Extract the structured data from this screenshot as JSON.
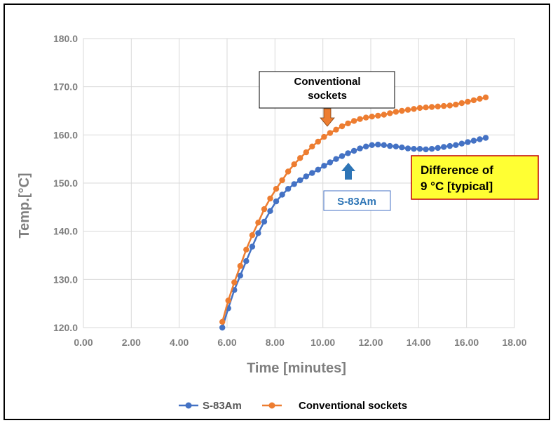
{
  "chart_data": {
    "type": "line",
    "xlabel": "Time [minutes]",
    "ylabel": "Temp.[°C]",
    "xlim": [
      0,
      18
    ],
    "ylim": [
      120,
      180
    ],
    "x_ticks": [
      "0.00",
      "2.00",
      "4.00",
      "6.00",
      "8.00",
      "10.00",
      "12.00",
      "14.00",
      "16.00",
      "18.00"
    ],
    "y_ticks": [
      "120.0",
      "130.0",
      "140.0",
      "150.0",
      "160.0",
      "170.0",
      "180.0"
    ],
    "grid": true,
    "legend_position": "bottom",
    "series": [
      {
        "name": "S-83Am",
        "color": "#4472c4",
        "points": [
          [
            5.8,
            120.0
          ],
          [
            6.05,
            124.0
          ],
          [
            6.3,
            127.8
          ],
          [
            6.55,
            130.8
          ],
          [
            6.8,
            133.8
          ],
          [
            7.05,
            136.8
          ],
          [
            7.3,
            139.6
          ],
          [
            7.55,
            142.0
          ],
          [
            7.8,
            144.2
          ],
          [
            8.05,
            146.2
          ],
          [
            8.3,
            147.6
          ],
          [
            8.55,
            148.8
          ],
          [
            8.8,
            149.8
          ],
          [
            9.05,
            150.6
          ],
          [
            9.3,
            151.4
          ],
          [
            9.55,
            152.1
          ],
          [
            9.8,
            152.8
          ],
          [
            10.05,
            153.6
          ],
          [
            10.3,
            154.3
          ],
          [
            10.55,
            155.0
          ],
          [
            10.8,
            155.6
          ],
          [
            11.05,
            156.2
          ],
          [
            11.3,
            156.7
          ],
          [
            11.55,
            157.2
          ],
          [
            11.8,
            157.6
          ],
          [
            12.05,
            157.9
          ],
          [
            12.3,
            158.0
          ],
          [
            12.55,
            157.9
          ],
          [
            12.8,
            157.7
          ],
          [
            13.05,
            157.6
          ],
          [
            13.3,
            157.4
          ],
          [
            13.55,
            157.2
          ],
          [
            13.8,
            157.1
          ],
          [
            14.05,
            157.1
          ],
          [
            14.3,
            157.0
          ],
          [
            14.55,
            157.1
          ],
          [
            14.8,
            157.3
          ],
          [
            15.05,
            157.5
          ],
          [
            15.3,
            157.7
          ],
          [
            15.55,
            157.9
          ],
          [
            15.8,
            158.2
          ],
          [
            16.05,
            158.5
          ],
          [
            16.3,
            158.8
          ],
          [
            16.55,
            159.1
          ],
          [
            16.8,
            159.4
          ]
        ]
      },
      {
        "name": "Conventional sockets",
        "color": "#ed7d31",
        "points": [
          [
            5.8,
            121.2
          ],
          [
            6.05,
            125.6
          ],
          [
            6.3,
            129.4
          ],
          [
            6.55,
            132.8
          ],
          [
            6.8,
            136.2
          ],
          [
            7.05,
            139.2
          ],
          [
            7.3,
            141.8
          ],
          [
            7.55,
            144.6
          ],
          [
            7.8,
            146.8
          ],
          [
            8.05,
            148.8
          ],
          [
            8.3,
            150.6
          ],
          [
            8.55,
            152.4
          ],
          [
            8.8,
            153.9
          ],
          [
            9.05,
            155.2
          ],
          [
            9.3,
            156.4
          ],
          [
            9.55,
            157.6
          ],
          [
            9.8,
            158.6
          ],
          [
            10.05,
            159.6
          ],
          [
            10.3,
            160.4
          ],
          [
            10.55,
            161.1
          ],
          [
            10.8,
            161.8
          ],
          [
            11.05,
            162.4
          ],
          [
            11.3,
            162.9
          ],
          [
            11.55,
            163.3
          ],
          [
            11.8,
            163.6
          ],
          [
            12.05,
            163.8
          ],
          [
            12.3,
            164.0
          ],
          [
            12.55,
            164.2
          ],
          [
            12.8,
            164.5
          ],
          [
            13.05,
            164.8
          ],
          [
            13.3,
            165.0
          ],
          [
            13.55,
            165.2
          ],
          [
            13.8,
            165.4
          ],
          [
            14.05,
            165.6
          ],
          [
            14.3,
            165.7
          ],
          [
            14.55,
            165.8
          ],
          [
            14.8,
            165.9
          ],
          [
            15.05,
            166.0
          ],
          [
            15.3,
            166.1
          ],
          [
            15.55,
            166.3
          ],
          [
            15.8,
            166.6
          ],
          [
            16.05,
            166.9
          ],
          [
            16.3,
            167.2
          ],
          [
            16.55,
            167.5
          ],
          [
            16.8,
            167.8
          ]
        ]
      }
    ],
    "annotations": {
      "conventional_label": [
        "Conventional",
        "sockets"
      ],
      "s83am_label": "S-83Am",
      "difference_label": [
        "Difference of",
        "9 °C [typical]"
      ]
    }
  },
  "colors": {
    "orange_arrow": "#ed7d31",
    "blue_arrow": "#2e75b6",
    "difference_fill": "#ffff33",
    "difference_border": "#c00000"
  }
}
